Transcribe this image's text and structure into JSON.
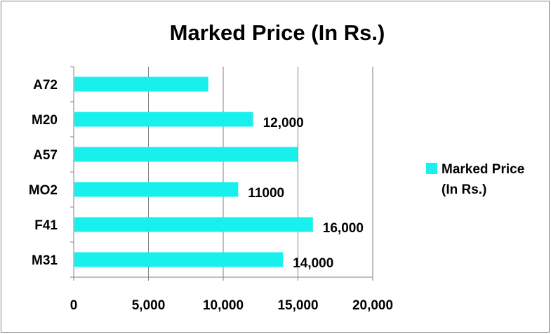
{
  "chart_data": {
    "type": "bar",
    "orientation": "horizontal",
    "title": "Marked Price (In Rs.)",
    "xlabel": "",
    "ylabel": "",
    "categories": [
      "A72",
      "M20",
      "A57",
      "MO2",
      "F41",
      "M31"
    ],
    "series": [
      {
        "name": "Marked Price (In Rs.)",
        "values": [
          9000,
          12000,
          15000,
          11000,
          16000,
          14000
        ],
        "data_labels": [
          "",
          "12,000",
          "",
          "11000",
          "16,000",
          "14,000"
        ]
      }
    ],
    "xlim": [
      0,
      20000
    ],
    "x_ticks": [
      0,
      5000,
      10000,
      15000,
      20000
    ],
    "x_tick_labels": [
      "0",
      "5,000",
      "10,000",
      "15,000",
      "20,000"
    ],
    "grid": "vertical",
    "legend": {
      "position": "right",
      "lines": [
        "Marked Price",
        "(In Rs.)"
      ]
    },
    "colors": {
      "bar": "#17f0ec",
      "grid": "#7f7f7f",
      "frame": "#808080",
      "axis": "#808080"
    }
  }
}
